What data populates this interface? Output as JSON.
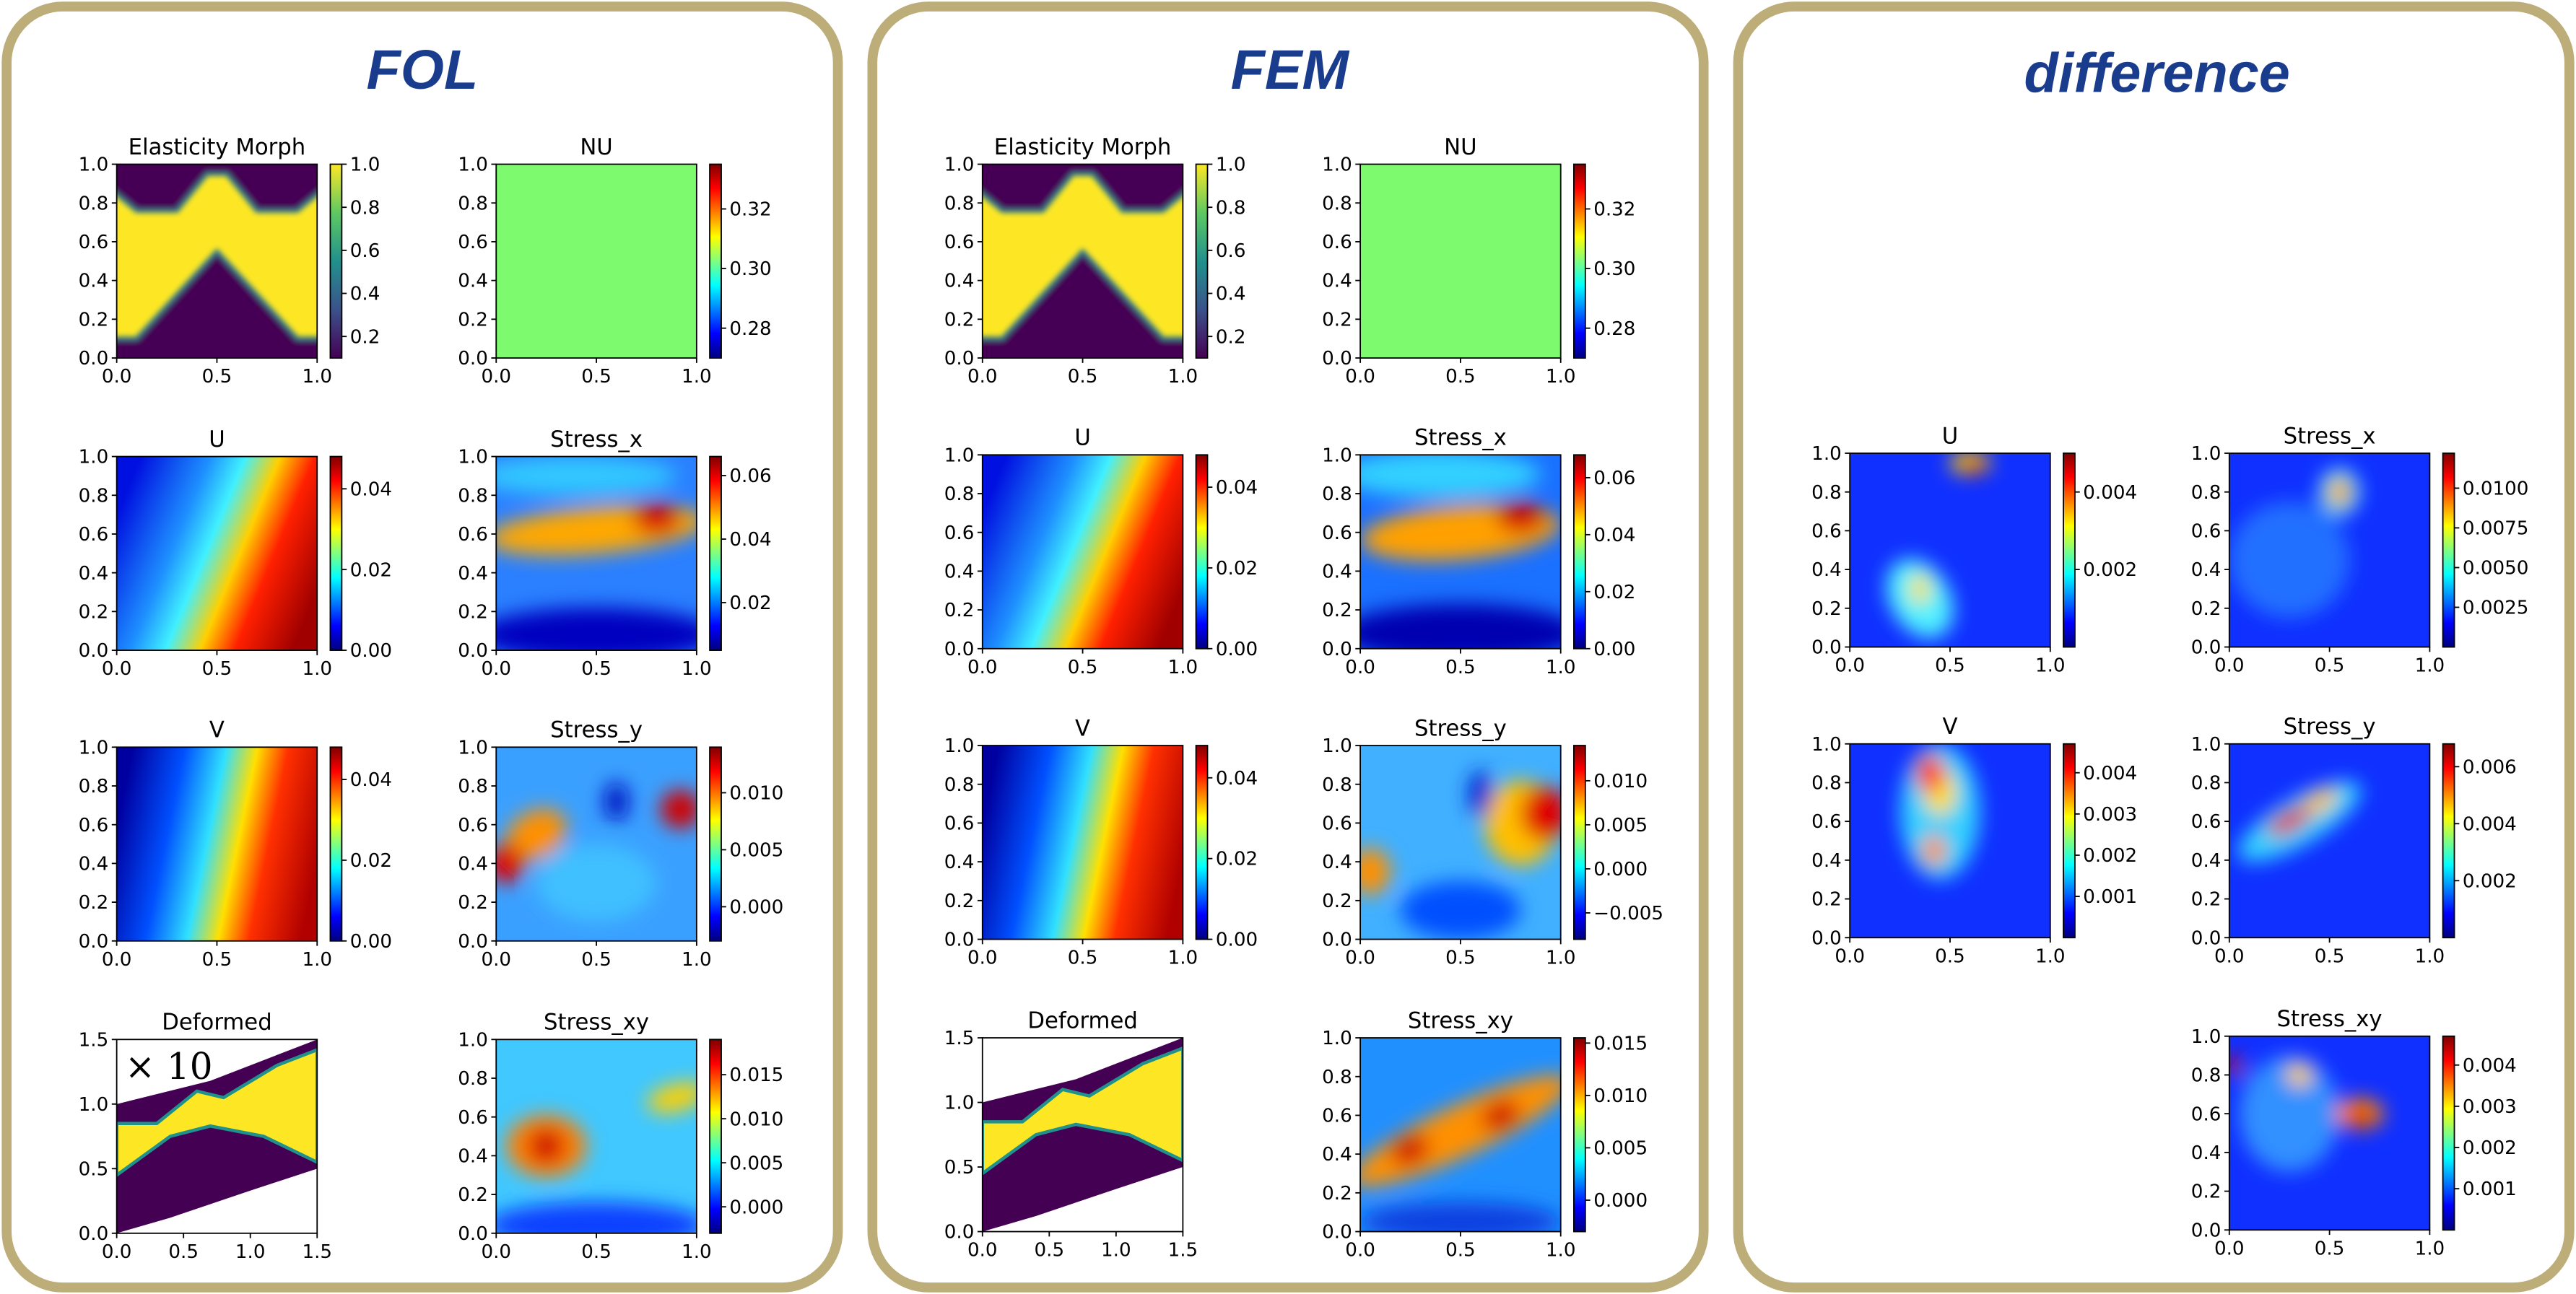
{
  "columns": [
    {
      "title": "FOL",
      "panels": [
        {
          "type": "heatmap",
          "title": "Elasticity Morph",
          "colormap": "viridis",
          "xlim": [
            0,
            1
          ],
          "ylim": [
            0,
            1
          ],
          "xticks": [
            {
              "value": 0,
              "label": "0.0"
            },
            0.5,
            {
              "value": 1,
              "label": "1.0"
            }
          ],
          "yticks": [
            {
              "value": 0,
              "label": "0.0"
            },
            0.2,
            0.4,
            0.6,
            0.8,
            {
              "value": 1,
              "label": "1.0"
            }
          ],
          "clim": [
            0.1,
            1.0
          ],
          "cticks": [
            0.2,
            0.4,
            0.6,
            0.8,
            {
              "value": 1,
              "label": "1.0"
            }
          ]
        },
        {
          "type": "heatmap",
          "title": "NU",
          "colormap": "jet",
          "xlim": [
            0,
            1
          ],
          "ylim": [
            0,
            1
          ],
          "xticks": [
            {
              "value": 0,
              "label": "0.0"
            },
            0.5,
            {
              "value": 1,
              "label": "1.0"
            }
          ],
          "yticks": [
            {
              "value": 0,
              "label": "0.0"
            },
            0.2,
            0.4,
            0.6,
            0.8,
            {
              "value": 1,
              "label": "1.0"
            }
          ],
          "clim": [
            0.27,
            0.335
          ],
          "cticks": [
            0.28,
            {
              "value": 0.3,
              "label": "0.30"
            },
            0.32
          ]
        },
        {
          "type": "heatmap",
          "title": "U",
          "colormap": "jet",
          "xlim": [
            0,
            1
          ],
          "ylim": [
            0,
            1
          ],
          "xticks": [
            {
              "value": 0,
              "label": "0.0"
            },
            0.5,
            {
              "value": 1,
              "label": "1.0"
            }
          ],
          "yticks": [
            {
              "value": 0,
              "label": "0.0"
            },
            0.2,
            0.4,
            0.6,
            0.8,
            {
              "value": 1,
              "label": "1.0"
            }
          ],
          "clim": [
            0,
            0.048
          ],
          "cticks": [
            {
              "value": 0,
              "label": "0.00"
            },
            0.02,
            0.04
          ]
        },
        {
          "type": "heatmap",
          "title": "Stress_x",
          "colormap": "jet",
          "xlim": [
            0,
            1
          ],
          "ylim": [
            0,
            1
          ],
          "xticks": [
            {
              "value": 0,
              "label": "0.0"
            },
            0.5,
            {
              "value": 1,
              "label": "1.0"
            }
          ],
          "yticks": [
            {
              "value": 0,
              "label": "0.0"
            },
            0.2,
            0.4,
            0.6,
            0.8,
            {
              "value": 1,
              "label": "1.0"
            }
          ],
          "clim": [
            0.005,
            0.066
          ],
          "cticks": [
            0.02,
            0.04,
            0.06
          ]
        },
        {
          "type": "heatmap",
          "title": "V",
          "colormap": "jet",
          "xlim": [
            0,
            1
          ],
          "ylim": [
            0,
            1
          ],
          "xticks": [
            {
              "value": 0,
              "label": "0.0"
            },
            0.5,
            {
              "value": 1,
              "label": "1.0"
            }
          ],
          "yticks": [
            {
              "value": 0,
              "label": "0.0"
            },
            0.2,
            0.4,
            0.6,
            0.8,
            {
              "value": 1,
              "label": "1.0"
            }
          ],
          "clim": [
            0,
            0.048
          ],
          "cticks": [
            {
              "value": 0,
              "label": "0.00"
            },
            0.02,
            0.04
          ]
        },
        {
          "type": "heatmap",
          "title": "Stress_y",
          "colormap": "jet",
          "xlim": [
            0,
            1
          ],
          "ylim": [
            0,
            1
          ],
          "xticks": [
            {
              "value": 0,
              "label": "0.0"
            },
            0.5,
            {
              "value": 1,
              "label": "1.0"
            }
          ],
          "yticks": [
            {
              "value": 0,
              "label": "0.0"
            },
            0.2,
            0.4,
            0.6,
            0.8,
            {
              "value": 1,
              "label": "1.0"
            }
          ],
          "clim": [
            -0.003,
            0.014
          ],
          "cticks": [
            {
              "value": 0,
              "label": "0.000"
            },
            0.005,
            {
              "value": 0.01,
              "label": "0.010"
            }
          ]
        },
        {
          "type": "deformed",
          "title": "Deformed",
          "xlim": [
            0,
            1.5
          ],
          "ylim": [
            0,
            1.5
          ],
          "annotation": "× 10",
          "xticks": [
            {
              "value": 0,
              "label": "0.0"
            },
            0.5,
            {
              "value": 1,
              "label": "1.0"
            },
            1.5
          ],
          "yticks": [
            {
              "value": 0,
              "label": "0.0"
            },
            0.5,
            {
              "value": 1,
              "label": "1.0"
            },
            1.5
          ]
        },
        {
          "type": "heatmap",
          "title": "Stress_xy",
          "colormap": "jet",
          "xlim": [
            0,
            1
          ],
          "ylim": [
            0,
            1
          ],
          "xticks": [
            {
              "value": 0,
              "label": "0.0"
            },
            0.5,
            {
              "value": 1,
              "label": "1.0"
            }
          ],
          "yticks": [
            {
              "value": 0,
              "label": "0.0"
            },
            0.2,
            0.4,
            0.6,
            0.8,
            {
              "value": 1,
              "label": "1.0"
            }
          ],
          "clim": [
            -0.003,
            0.019
          ],
          "cticks": [
            {
              "value": 0,
              "label": "0.000"
            },
            0.005,
            {
              "value": 0.01,
              "label": "0.010"
            },
            0.015
          ]
        }
      ]
    },
    {
      "title": "FEM",
      "panels": [
        {
          "type": "heatmap",
          "title": "Elasticity Morph",
          "colormap": "viridis",
          "xlim": [
            0,
            1
          ],
          "ylim": [
            0,
            1
          ],
          "xticks": [
            {
              "value": 0,
              "label": "0.0"
            },
            0.5,
            {
              "value": 1,
              "label": "1.0"
            }
          ],
          "yticks": [
            {
              "value": 0,
              "label": "0.0"
            },
            0.2,
            0.4,
            0.6,
            0.8,
            {
              "value": 1,
              "label": "1.0"
            }
          ],
          "clim": [
            0.1,
            1.0
          ],
          "cticks": [
            0.2,
            0.4,
            0.6,
            0.8,
            {
              "value": 1,
              "label": "1.0"
            }
          ]
        },
        {
          "type": "heatmap",
          "title": "NU",
          "colormap": "jet",
          "xlim": [
            0,
            1
          ],
          "ylim": [
            0,
            1
          ],
          "xticks": [
            {
              "value": 0,
              "label": "0.0"
            },
            0.5,
            {
              "value": 1,
              "label": "1.0"
            }
          ],
          "yticks": [
            {
              "value": 0,
              "label": "0.0"
            },
            0.2,
            0.4,
            0.6,
            0.8,
            {
              "value": 1,
              "label": "1.0"
            }
          ],
          "clim": [
            0.27,
            0.335
          ],
          "cticks": [
            0.28,
            {
              "value": 0.3,
              "label": "0.30"
            },
            0.32
          ]
        },
        {
          "type": "heatmap",
          "title": "U",
          "colormap": "jet",
          "xlim": [
            0,
            1
          ],
          "ylim": [
            0,
            1
          ],
          "xticks": [
            {
              "value": 0,
              "label": "0.0"
            },
            0.5,
            {
              "value": 1,
              "label": "1.0"
            }
          ],
          "yticks": [
            {
              "value": 0,
              "label": "0.0"
            },
            0.2,
            0.4,
            0.6,
            0.8,
            {
              "value": 1,
              "label": "1.0"
            }
          ],
          "clim": [
            0,
            0.048
          ],
          "cticks": [
            {
              "value": 0,
              "label": "0.00"
            },
            0.02,
            0.04
          ]
        },
        {
          "type": "heatmap",
          "title": "Stress_x",
          "colormap": "jet",
          "xlim": [
            0,
            1
          ],
          "ylim": [
            0,
            1
          ],
          "xticks": [
            {
              "value": 0,
              "label": "0.0"
            },
            0.5,
            {
              "value": 1,
              "label": "1.0"
            }
          ],
          "yticks": [
            {
              "value": 0,
              "label": "0.0"
            },
            0.2,
            0.4,
            0.6,
            0.8,
            {
              "value": 1,
              "label": "1.0"
            }
          ],
          "clim": [
            0,
            0.068
          ],
          "cticks": [
            {
              "value": 0,
              "label": "0.00"
            },
            0.02,
            0.04,
            0.06
          ]
        },
        {
          "type": "heatmap",
          "title": "V",
          "colormap": "jet",
          "xlim": [
            0,
            1
          ],
          "ylim": [
            0,
            1
          ],
          "xticks": [
            {
              "value": 0,
              "label": "0.0"
            },
            0.5,
            {
              "value": 1,
              "label": "1.0"
            }
          ],
          "yticks": [
            {
              "value": 0,
              "label": "0.0"
            },
            0.2,
            0.4,
            0.6,
            0.8,
            {
              "value": 1,
              "label": "1.0"
            }
          ],
          "clim": [
            0,
            0.048
          ],
          "cticks": [
            {
              "value": 0,
              "label": "0.00"
            },
            0.02,
            0.04
          ]
        },
        {
          "type": "heatmap",
          "title": "Stress_y",
          "colormap": "jet",
          "xlim": [
            0,
            1
          ],
          "ylim": [
            0,
            1
          ],
          "xticks": [
            {
              "value": 0,
              "label": "0.0"
            },
            0.5,
            {
              "value": 1,
              "label": "1.0"
            }
          ],
          "yticks": [
            {
              "value": 0,
              "label": "0.0"
            },
            0.2,
            0.4,
            0.6,
            0.8,
            {
              "value": 1,
              "label": "1.0"
            }
          ],
          "clim": [
            -0.008,
            0.014
          ],
          "cticks": [
            {
              "value": -0.005,
              "label": "−0.005"
            },
            {
              "value": 0,
              "label": "0.000"
            },
            0.005,
            {
              "value": 0.01,
              "label": "0.010"
            }
          ]
        },
        {
          "type": "deformed",
          "title": "Deformed",
          "xlim": [
            0,
            1.5
          ],
          "ylim": [
            0,
            1.5
          ],
          "xticks": [
            {
              "value": 0,
              "label": "0.0"
            },
            0.5,
            {
              "value": 1,
              "label": "1.0"
            },
            1.5
          ],
          "yticks": [
            {
              "value": 0,
              "label": "0.0"
            },
            0.5,
            {
              "value": 1,
              "label": "1.0"
            },
            1.5
          ]
        },
        {
          "type": "heatmap",
          "title": "Stress_xy",
          "colormap": "jet",
          "xlim": [
            0,
            1
          ],
          "ylim": [
            0,
            1
          ],
          "xticks": [
            {
              "value": 0,
              "label": "0.0"
            },
            0.5,
            {
              "value": 1,
              "label": "1.0"
            }
          ],
          "yticks": [
            {
              "value": 0,
              "label": "0.0"
            },
            0.2,
            0.4,
            0.6,
            0.8,
            {
              "value": 1,
              "label": "1.0"
            }
          ],
          "clim": [
            -0.003,
            0.0155
          ],
          "cticks": [
            {
              "value": 0,
              "label": "0.000"
            },
            0.005,
            {
              "value": 0.01,
              "label": "0.010"
            },
            0.015
          ]
        }
      ]
    },
    {
      "title": "difference",
      "panels": [
        {
          "type": "heatmap",
          "title": "U",
          "colormap": "jet",
          "xlim": [
            0,
            1
          ],
          "ylim": [
            0,
            1
          ],
          "xticks": [
            {
              "value": 0,
              "label": "0.0"
            },
            0.5,
            {
              "value": 1,
              "label": "1.0"
            }
          ],
          "yticks": [
            {
              "value": 0,
              "label": "0.0"
            },
            0.2,
            0.4,
            0.6,
            0.8,
            {
              "value": 1,
              "label": "1.0"
            }
          ],
          "clim": [
            0,
            0.005
          ],
          "cticks": [
            0.002,
            0.004
          ]
        },
        {
          "type": "heatmap",
          "title": "Stress_x",
          "colormap": "jet",
          "xlim": [
            0,
            1
          ],
          "ylim": [
            0,
            1
          ],
          "xticks": [
            {
              "value": 0,
              "label": "0.0"
            },
            0.5,
            {
              "value": 1,
              "label": "1.0"
            }
          ],
          "yticks": [
            {
              "value": 0,
              "label": "0.0"
            },
            0.2,
            0.4,
            0.6,
            0.8,
            {
              "value": 1,
              "label": "1.0"
            }
          ],
          "clim": [
            0,
            0.0122
          ],
          "cticks": [
            0.0025,
            {
              "value": 0.005,
              "label": "0.0050"
            },
            0.0075,
            {
              "value": 0.01,
              "label": "0.0100"
            }
          ]
        },
        {
          "type": "heatmap",
          "title": "V",
          "colormap": "jet",
          "xlim": [
            0,
            1
          ],
          "ylim": [
            0,
            1
          ],
          "xticks": [
            {
              "value": 0,
              "label": "0.0"
            },
            0.5,
            {
              "value": 1,
              "label": "1.0"
            }
          ],
          "yticks": [
            {
              "value": 0,
              "label": "0.0"
            },
            0.2,
            0.4,
            0.6,
            0.8,
            {
              "value": 1,
              "label": "1.0"
            }
          ],
          "clim": [
            0,
            0.0047
          ],
          "cticks": [
            0.001,
            0.002,
            0.003,
            0.004
          ]
        },
        {
          "type": "heatmap",
          "title": "Stress_y",
          "colormap": "jet",
          "xlim": [
            0,
            1
          ],
          "ylim": [
            0,
            1
          ],
          "xticks": [
            {
              "value": 0,
              "label": "0.0"
            },
            0.5,
            {
              "value": 1,
              "label": "1.0"
            }
          ],
          "yticks": [
            {
              "value": 0,
              "label": "0.0"
            },
            0.2,
            0.4,
            0.6,
            0.8,
            {
              "value": 1,
              "label": "1.0"
            }
          ],
          "clim": [
            0,
            0.0068
          ],
          "cticks": [
            0.002,
            0.004,
            0.006
          ]
        },
        {
          "type": "heatmap",
          "title": "Stress_xy",
          "colormap": "jet",
          "xlim": [
            0,
            1
          ],
          "ylim": [
            0,
            1
          ],
          "xticks": [
            {
              "value": 0,
              "label": "0.0"
            },
            0.5,
            {
              "value": 1,
              "label": "1.0"
            }
          ],
          "yticks": [
            {
              "value": 0,
              "label": "0.0"
            },
            0.2,
            0.4,
            0.6,
            0.8,
            {
              "value": 1,
              "label": "1.0"
            }
          ],
          "clim": [
            0,
            0.0047
          ],
          "cticks": [
            0.001,
            0.002,
            0.003,
            0.004
          ]
        }
      ]
    }
  ]
}
